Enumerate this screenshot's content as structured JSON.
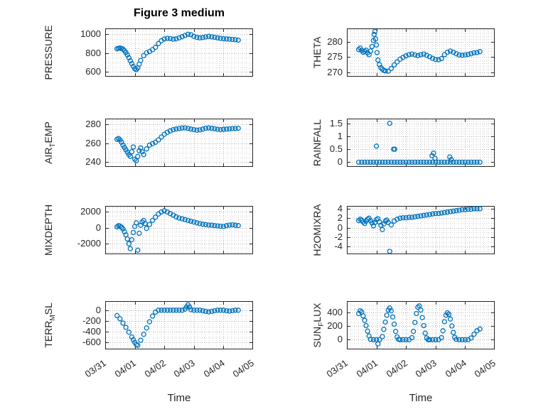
{
  "title": "Figure 3 medium",
  "xlabel": "Time",
  "accent_color": "#0072BD",
  "xaxis": {
    "lim": [
      0,
      5
    ],
    "minor_step": 0.125,
    "ticks": [
      0,
      1,
      2,
      3,
      4,
      5
    ],
    "tick_labels": [
      "03/31",
      "04/01",
      "04/02",
      "04/03",
      "04/04",
      "04/05"
    ]
  },
  "chart_data": [
    {
      "type": "scatter",
      "name": "PRESSURE",
      "ylabel_pre": "PRESSURE",
      "ylabel_sub": "",
      "ylabel_suf": "",
      "ylim": [
        550,
        1060
      ],
      "yticks": [
        600,
        800,
        1000
      ],
      "ytick_labels": [
        "600",
        "800",
        "1000"
      ],
      "y_minor_step": 50,
      "x": [
        0.4,
        0.45,
        0.5,
        0.55,
        0.6,
        0.65,
        0.7,
        0.75,
        0.8,
        0.85,
        0.9,
        0.95,
        1.0,
        1.05,
        1.1,
        1.15,
        1.2,
        1.3,
        1.4,
        1.5,
        1.6,
        1.7,
        1.8,
        1.9,
        2.0,
        2.1,
        2.2,
        2.3,
        2.4,
        2.5,
        2.6,
        2.7,
        2.8,
        2.9,
        3.0,
        3.1,
        3.2,
        3.3,
        3.4,
        3.5,
        3.6,
        3.7,
        3.8,
        3.9,
        4.0,
        4.1,
        4.2,
        4.3,
        4.4,
        4.5
      ],
      "y": [
        845,
        850,
        852,
        848,
        840,
        825,
        805,
        780,
        750,
        718,
        688,
        658,
        634,
        625,
        642,
        682,
        722,
        772,
        802,
        816,
        836,
        860,
        900,
        930,
        948,
        955,
        952,
        946,
        950,
        960,
        972,
        986,
        998,
        993,
        976,
        965,
        960,
        964,
        970,
        976,
        971,
        966,
        960,
        955,
        951,
        949,
        946,
        944,
        941,
        936
      ]
    },
    {
      "type": "scatter",
      "name": "THETA",
      "ylabel_pre": "THETA",
      "ylabel_sub": "",
      "ylabel_suf": "",
      "ylim": [
        268.5,
        284.5
      ],
      "yticks": [
        270,
        275,
        280
      ],
      "ytick_labels": [
        "270",
        "275",
        "280"
      ],
      "y_minor_step": 1,
      "x": [
        0.4,
        0.45,
        0.5,
        0.55,
        0.6,
        0.65,
        0.7,
        0.75,
        0.8,
        0.85,
        0.9,
        0.92,
        0.95,
        0.97,
        1.0,
        1.02,
        1.05,
        1.1,
        1.15,
        1.2,
        1.25,
        1.3,
        1.4,
        1.5,
        1.6,
        1.7,
        1.8,
        1.9,
        2.0,
        2.1,
        2.2,
        2.3,
        2.4,
        2.5,
        2.6,
        2.7,
        2.8,
        2.9,
        3.0,
        3.1,
        3.2,
        3.3,
        3.4,
        3.5,
        3.6,
        3.7,
        3.8,
        3.9,
        4.0,
        4.1,
        4.2,
        4.3,
        4.4,
        4.5
      ],
      "y": [
        277.5,
        278.0,
        277.2,
        276.6,
        276.9,
        277.3,
        276.4,
        275.8,
        277.0,
        278.5,
        280.5,
        282.5,
        283.5,
        281.0,
        279.0,
        276.5,
        274.0,
        272.5,
        271.5,
        271.0,
        270.6,
        270.4,
        270.3,
        271.2,
        272.4,
        273.4,
        274.3,
        274.9,
        275.4,
        275.8,
        276.0,
        275.7,
        275.5,
        275.8,
        276.0,
        275.6,
        275.1,
        274.6,
        274.2,
        274.1,
        274.5,
        275.8,
        276.6,
        277.0,
        276.6,
        276.1,
        275.7,
        275.6,
        275.7,
        275.9,
        276.1,
        276.4,
        276.5,
        276.8
      ]
    },
    {
      "type": "scatter",
      "name": "AIR_TEMP",
      "ylabel_pre": "AIR",
      "ylabel_sub": "T",
      "ylabel_suf": "EMP",
      "ylim": [
        235,
        286
      ],
      "yticks": [
        240,
        260,
        280
      ],
      "ytick_labels": [
        "240",
        "260",
        "280"
      ],
      "y_minor_step": 5,
      "x": [
        0.4,
        0.45,
        0.5,
        0.55,
        0.6,
        0.65,
        0.7,
        0.75,
        0.8,
        0.85,
        0.9,
        0.95,
        1.0,
        1.05,
        1.1,
        1.15,
        1.2,
        1.25,
        1.3,
        1.4,
        1.5,
        1.6,
        1.7,
        1.8,
        1.9,
        2.0,
        2.1,
        2.2,
        2.3,
        2.4,
        2.5,
        2.6,
        2.7,
        2.8,
        2.9,
        3.0,
        3.1,
        3.2,
        3.3,
        3.4,
        3.5,
        3.6,
        3.7,
        3.8,
        3.9,
        4.0,
        4.1,
        4.2,
        4.3,
        4.4,
        4.5
      ],
      "y": [
        264,
        265,
        263.5,
        261,
        258,
        255.5,
        253,
        250.5,
        248,
        246,
        251,
        256,
        243,
        241.5,
        246,
        252,
        255,
        251,
        248,
        254,
        258,
        259.5,
        261,
        263.5,
        266.5,
        269.5,
        271.5,
        273,
        274.2,
        275,
        275.6,
        276,
        276.2,
        275.6,
        274.9,
        274.3,
        273.8,
        274.1,
        274.9,
        275.7,
        276.1,
        275.7,
        275.2,
        274.7,
        274.3,
        274.6,
        274.9,
        275.1,
        275.4,
        275.5,
        275.8
      ]
    },
    {
      "type": "scatter",
      "name": "RAINFALL",
      "ylabel_pre": "RAINFALL",
      "ylabel_sub": "",
      "ylabel_suf": "",
      "ylim": [
        -0.18,
        1.68
      ],
      "yticks": [
        0,
        0.5,
        1,
        1.5
      ],
      "ytick_labels": [
        "0",
        "0.5",
        "1",
        "1.5"
      ],
      "y_minor_step": 0.1,
      "x": [
        0.4,
        0.5,
        0.6,
        0.7,
        0.8,
        0.9,
        1.0,
        1.1,
        1.2,
        1.3,
        1.4,
        1.5,
        1.6,
        1.7,
        1.8,
        1.9,
        2.0,
        2.1,
        2.2,
        2.3,
        2.4,
        2.5,
        2.6,
        2.7,
        2.8,
        2.9,
        3.0,
        3.1,
        3.2,
        3.3,
        3.4,
        3.5,
        3.6,
        3.7,
        3.8,
        3.9,
        4.0,
        4.1,
        4.2,
        4.3,
        4.4,
        4.5,
        1.0,
        1.45,
        1.58,
        1.62,
        2.88,
        2.93,
        2.98,
        3.48,
        3.53
      ],
      "y": [
        0,
        0,
        0,
        0,
        0,
        0,
        0,
        0,
        0,
        0,
        0,
        0,
        0,
        0,
        0,
        0,
        0,
        0,
        0,
        0,
        0,
        0,
        0,
        0,
        0,
        0,
        0,
        0,
        0,
        0,
        0,
        0,
        0,
        0,
        0,
        0,
        0,
        0,
        0,
        0,
        0,
        0,
        0.62,
        1.5,
        0.5,
        0.5,
        0.25,
        0.35,
        0.15,
        0.2,
        0.1
      ]
    },
    {
      "type": "scatter",
      "name": "MIXDEPTH",
      "ylabel_pre": "MIXDEPTH",
      "ylabel_sub": "",
      "ylabel_suf": "",
      "ylim": [
        -3300,
        2700
      ],
      "yticks": [
        -2000,
        0,
        2000
      ],
      "ytick_labels": [
        "-2000",
        "0",
        "2000"
      ],
      "y_minor_step": 500,
      "x": [
        0.4,
        0.45,
        0.5,
        0.55,
        0.6,
        0.65,
        0.7,
        0.75,
        0.8,
        0.85,
        0.9,
        0.95,
        1.0,
        1.05,
        1.1,
        1.15,
        1.2,
        1.25,
        1.3,
        1.35,
        1.4,
        1.5,
        1.6,
        1.7,
        1.8,
        1.9,
        2.0,
        2.1,
        2.2,
        2.3,
        2.4,
        2.5,
        2.6,
        2.7,
        2.8,
        2.9,
        3.0,
        3.1,
        3.2,
        3.3,
        3.4,
        3.5,
        3.6,
        3.7,
        3.8,
        3.9,
        4.0,
        4.1,
        4.2,
        4.3,
        4.4,
        4.5
      ],
      "y": [
        100,
        250,
        200,
        50,
        -150,
        -500,
        -900,
        -1400,
        -2000,
        -2600,
        -1500,
        -600,
        150,
        600,
        -2800,
        -700,
        300,
        700,
        900,
        500,
        -100,
        400,
        900,
        1300,
        1700,
        1950,
        2100,
        1950,
        1750,
        1550,
        1350,
        1200,
        1100,
        1000,
        900,
        800,
        700,
        600,
        500,
        430,
        380,
        330,
        300,
        260,
        220,
        180,
        150,
        250,
        320,
        350,
        300,
        260
      ]
    },
    {
      "type": "scatter",
      "name": "H2OMIXRA",
      "ylabel_pre": "H2OMIXRA",
      "ylabel_sub": "",
      "ylabel_suf": "",
      "ylim": [
        -5.6,
        4.6
      ],
      "yticks": [
        -4,
        -2,
        0,
        2,
        4
      ],
      "ytick_labels": [
        "-4",
        "-2",
        "0",
        "2",
        "4"
      ],
      "y_minor_step": 1,
      "x": [
        0.4,
        0.45,
        0.5,
        0.55,
        0.6,
        0.65,
        0.7,
        0.75,
        0.8,
        0.85,
        0.9,
        0.95,
        1.0,
        1.05,
        1.1,
        1.15,
        1.2,
        1.25,
        1.3,
        1.35,
        1.4,
        1.45,
        1.5,
        1.6,
        1.7,
        1.8,
        1.9,
        2.0,
        2.1,
        2.2,
        2.3,
        2.4,
        2.5,
        2.6,
        2.7,
        2.8,
        2.9,
        3.0,
        3.1,
        3.2,
        3.3,
        3.4,
        3.5,
        3.6,
        3.7,
        3.8,
        3.9,
        4.0,
        4.1,
        4.2,
        4.3,
        4.4,
        4.5
      ],
      "y": [
        1.5,
        1.8,
        1.6,
        1.2,
        0.9,
        1.4,
        1.8,
        2.0,
        1.5,
        1.0,
        0.4,
        1.1,
        1.7,
        1.9,
        1.2,
        0.5,
        -0.4,
        0.8,
        1.4,
        1.6,
        1.1,
        -5.0,
        0.6,
        1.4,
        1.8,
        2.0,
        2.1,
        2.1,
        2.2,
        2.2,
        2.3,
        2.4,
        2.5,
        2.6,
        2.7,
        2.8,
        2.9,
        3.0,
        3.0,
        3.1,
        3.2,
        3.3,
        3.4,
        3.5,
        3.6,
        3.7,
        3.8,
        3.8,
        3.9,
        3.9,
        4.0,
        4.0,
        4.0
      ]
    },
    {
      "type": "scatter",
      "name": "TERR_MSL",
      "ylabel_pre": "TERR",
      "ylabel_sub": "M",
      "ylabel_suf": "SL",
      "ylim": [
        -730,
        170
      ],
      "yticks": [
        -600,
        -400,
        -200,
        0
      ],
      "ytick_labels": [
        "-600",
        "-400",
        "-200",
        "0"
      ],
      "y_minor_step": 100,
      "x": [
        0.4,
        0.5,
        0.6,
        0.7,
        0.8,
        0.9,
        0.95,
        1.0,
        1.05,
        1.1,
        1.2,
        1.3,
        1.4,
        1.5,
        1.6,
        1.7,
        1.8,
        1.9,
        2.0,
        2.1,
        2.2,
        2.3,
        2.4,
        2.5,
        2.6,
        2.7,
        2.75,
        2.8,
        2.85,
        2.9,
        3.0,
        3.1,
        3.2,
        3.3,
        3.4,
        3.5,
        3.6,
        3.7,
        3.8,
        3.9,
        4.0,
        4.1,
        4.2,
        4.3,
        4.4,
        4.5
      ],
      "y": [
        -100,
        -160,
        -240,
        -320,
        -410,
        -500,
        -550,
        -600,
        -640,
        -655,
        -560,
        -450,
        -330,
        -215,
        -110,
        -35,
        0,
        0,
        0,
        0,
        0,
        0,
        0,
        0,
        0,
        20,
        60,
        100,
        60,
        10,
        0,
        0,
        0,
        -10,
        -20,
        -30,
        -20,
        -10,
        0,
        0,
        0,
        -10,
        -15,
        -10,
        0,
        0
      ]
    },
    {
      "type": "scatter",
      "name": "SUN_FLUX",
      "ylabel_pre": "SUN",
      "ylabel_sub": "F",
      "ylabel_suf": "LUX",
      "ylim": [
        -140,
        560
      ],
      "yticks": [
        0,
        200,
        400
      ],
      "ytick_labels": [
        "0",
        "200",
        "400"
      ],
      "y_minor_step": 50,
      "x": [
        0.4,
        0.45,
        0.5,
        0.55,
        0.6,
        0.65,
        0.7,
        0.75,
        0.8,
        0.9,
        1.0,
        1.05,
        1.1,
        1.2,
        1.25,
        1.3,
        1.35,
        1.4,
        1.45,
        1.5,
        1.55,
        1.6,
        1.65,
        1.7,
        1.75,
        1.8,
        1.9,
        2.0,
        2.1,
        2.2,
        2.25,
        2.3,
        2.35,
        2.4,
        2.45,
        2.5,
        2.55,
        2.6,
        2.65,
        2.7,
        2.75,
        2.8,
        2.9,
        3.0,
        3.1,
        3.2,
        3.25,
        3.3,
        3.35,
        3.4,
        3.45,
        3.5,
        3.55,
        3.6,
        3.65,
        3.7,
        3.8,
        3.9,
        4.0,
        4.1,
        4.2,
        4.3,
        4.4,
        4.5
      ],
      "y": [
        380,
        420,
        400,
        345,
        280,
        205,
        125,
        55,
        5,
        0,
        0,
        -60,
        0,
        45,
        150,
        255,
        355,
        430,
        460,
        420,
        330,
        225,
        120,
        40,
        5,
        0,
        0,
        0,
        0,
        30,
        120,
        250,
        380,
        470,
        490,
        430,
        320,
        205,
        95,
        25,
        0,
        0,
        0,
        0,
        0,
        30,
        130,
        260,
        355,
        390,
        370,
        300,
        200,
        105,
        35,
        5,
        0,
        0,
        0,
        0,
        25,
        80,
        130,
        155
      ]
    }
  ]
}
